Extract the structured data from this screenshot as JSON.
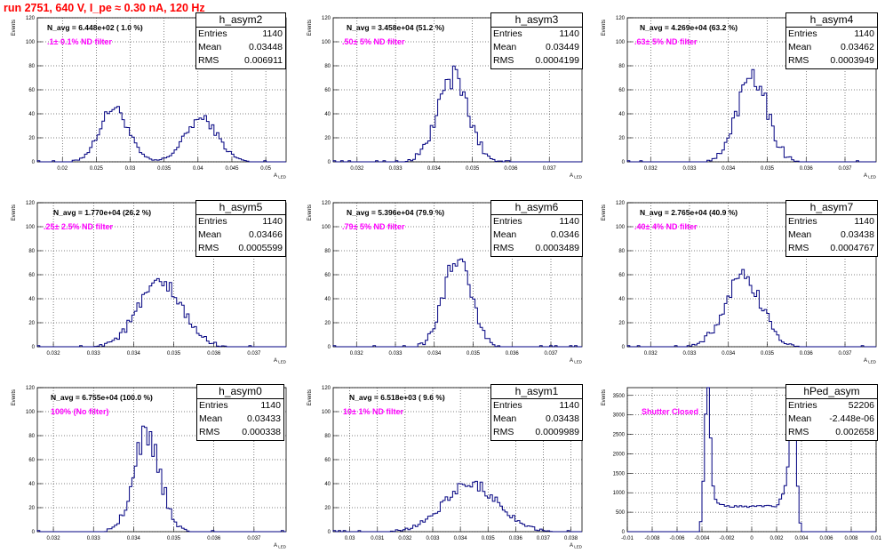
{
  "header": {
    "title": "run 2751,   640 V, I_pe ≈ 0.30 nA, 120 Hz",
    "color": "#ff0000"
  },
  "colors": {
    "hist": "#000080",
    "note": "#ff00ff",
    "axis": "#000000"
  },
  "stat_labels": {
    "entries": "Entries",
    "mean": "Mean",
    "rms": "RMS"
  },
  "chart_data": [
    {
      "type": "bar",
      "name": "h_asym2",
      "ylabel": "Events",
      "xlabel": "A_{LED}",
      "xlim": [
        0.0163,
        0.053
      ],
      "ylim": [
        0,
        120
      ],
      "grid": true,
      "xticks": [
        "0.02",
        "0.025",
        "0.03",
        "0.035",
        "0.04",
        "0.045",
        "0.05"
      ],
      "xtick_values": [
        0.02,
        0.025,
        0.03,
        0.035,
        0.04,
        0.045,
        0.05
      ],
      "yticks": [
        "0",
        "20",
        "40",
        "60",
        "80",
        "100",
        "120"
      ],
      "ytick_values": [
        0,
        20,
        40,
        60,
        80,
        100,
        120
      ],
      "n_avg": "N_avg = 6.448e+02 ( 1.0 %)",
      "note": ".1± 0.1% ND filter",
      "stats": {
        "entries": "1140",
        "mean": "0.03448",
        "rms": "0.006911"
      },
      "peaks": [
        {
          "x": 0.0276,
          "w": 0.0021,
          "h": 45
        },
        {
          "x": 0.0405,
          "w": 0.0024,
          "h": 36
        }
      ],
      "noise": 5
    },
    {
      "type": "bar",
      "name": "h_asym3",
      "ylabel": "Events",
      "xlabel": "A_{LED}",
      "xlim": [
        0.03138,
        0.03785
      ],
      "ylim": [
        0,
        120
      ],
      "grid": true,
      "xticks": [
        "0.032",
        "0.033",
        "0.034",
        "0.035",
        "0.036",
        "0.037"
      ],
      "xtick_values": [
        0.032,
        0.033,
        0.034,
        0.035,
        0.036,
        0.037
      ],
      "yticks": [
        "0",
        "20",
        "40",
        "60",
        "80",
        "100",
        "120"
      ],
      "ytick_values": [
        0,
        20,
        40,
        60,
        80,
        100,
        120
      ],
      "n_avg": "N_avg = 3.458e+04 (51.2 %)",
      "note": ".50± 5% ND filter",
      "stats": {
        "entries": "1140",
        "mean": "0.03449",
        "rms": "0.0004199"
      },
      "peaks": [
        {
          "x": 0.03449,
          "w": 0.0004,
          "h": 70
        }
      ],
      "noise": 10
    },
    {
      "type": "bar",
      "name": "h_asym4",
      "ylabel": "Events",
      "xlabel": "A_{LED}",
      "xlim": [
        0.0314,
        0.0378
      ],
      "ylim": [
        0,
        120
      ],
      "grid": true,
      "xticks": [
        "0.032",
        "0.033",
        "0.034",
        "0.035",
        "0.036",
        "0.037"
      ],
      "xtick_values": [
        0.032,
        0.033,
        0.034,
        0.035,
        0.036,
        0.037
      ],
      "yticks": [
        "0",
        "20",
        "40",
        "60",
        "80",
        "100",
        "120"
      ],
      "ytick_values": [
        0,
        20,
        40,
        60,
        80,
        100,
        120
      ],
      "n_avg": "N_avg = 4.269e+04 (63.2 %)",
      "note": ".63± 5% ND filter",
      "stats": {
        "entries": "1140",
        "mean": "0.03462",
        "rms": "0.0003949"
      },
      "peaks": [
        {
          "x": 0.03462,
          "w": 0.00038,
          "h": 75
        }
      ],
      "noise": 10
    },
    {
      "type": "bar",
      "name": "h_asym5",
      "ylabel": "Events",
      "xlabel": "A_{LED}",
      "xlim": [
        0.0316,
        0.0378
      ],
      "ylim": [
        0,
        120
      ],
      "grid": true,
      "xticks": [
        "0.032",
        "0.033",
        "0.034",
        "0.035",
        "0.036",
        "0.037"
      ],
      "xtick_values": [
        0.032,
        0.033,
        0.034,
        0.035,
        0.036,
        0.037
      ],
      "yticks": [
        "0",
        "20",
        "40",
        "60",
        "80",
        "100",
        "120"
      ],
      "ytick_values": [
        0,
        20,
        40,
        60,
        80,
        100,
        120
      ],
      "n_avg": "N_avg = 1.770e+04 (26.2 %)",
      "note": ".25± 2.5% ND filter",
      "stats": {
        "entries": "1140",
        "mean": "0.03466",
        "rms": "0.0005599"
      },
      "peaks": [
        {
          "x": 0.03466,
          "w": 0.00055,
          "h": 52
        }
      ],
      "noise": 8
    },
    {
      "type": "bar",
      "name": "h_asym6",
      "ylabel": "Events",
      "xlabel": "A_{LED}",
      "xlim": [
        0.0314,
        0.0378
      ],
      "ylim": [
        0,
        120
      ],
      "grid": true,
      "xticks": [
        "0.032",
        "0.033",
        "0.034",
        "0.035",
        "0.036",
        "0.037"
      ],
      "xtick_values": [
        0.032,
        0.033,
        0.034,
        0.035,
        0.036,
        0.037
      ],
      "yticks": [
        "0",
        "20",
        "40",
        "60",
        "80",
        "100",
        "120"
      ],
      "ytick_values": [
        0,
        20,
        40,
        60,
        80,
        100,
        120
      ],
      "n_avg": "N_avg = 5.396e+04 (79.9 %)",
      "note": ".79± 5% ND filter",
      "stats": {
        "entries": "1140",
        "mean": "0.0346",
        "rms": "0.0003489"
      },
      "peaks": [
        {
          "x": 0.0346,
          "w": 0.00035,
          "h": 76
        }
      ],
      "noise": 8
    },
    {
      "type": "bar",
      "name": "h_asym7",
      "ylabel": "Events",
      "xlabel": "A_{LED}",
      "xlim": [
        0.0314,
        0.0378
      ],
      "ylim": [
        0,
        120
      ],
      "grid": true,
      "xticks": [
        "0.032",
        "0.033",
        "0.034",
        "0.035",
        "0.036",
        "0.037"
      ],
      "xtick_values": [
        0.032,
        0.033,
        0.034,
        0.035,
        0.036,
        0.037
      ],
      "yticks": [
        "0",
        "20",
        "40",
        "60",
        "80",
        "100",
        "120"
      ],
      "ytick_values": [
        0,
        20,
        40,
        60,
        80,
        100,
        120
      ],
      "n_avg": "N_avg = 2.765e+04 (40.9 %)",
      "note": ".40± 4% ND filter",
      "stats": {
        "entries": "1140",
        "mean": "0.03438",
        "rms": "0.0004767"
      },
      "peaks": [
        {
          "x": 0.03438,
          "w": 0.00047,
          "h": 57
        }
      ],
      "noise": 8
    },
    {
      "type": "bar",
      "name": "h_asym0",
      "ylabel": "Events",
      "xlabel": "A_{LED}",
      "xlim": [
        0.0316,
        0.0378
      ],
      "ylim": [
        0,
        120
      ],
      "grid": true,
      "xticks": [
        "0.032",
        "0.033",
        "0.034",
        "0.035",
        "0.036",
        "0.037"
      ],
      "xtick_values": [
        0.032,
        0.033,
        0.034,
        0.035,
        0.036,
        0.037
      ],
      "yticks": [
        "0",
        "20",
        "40",
        "60",
        "80",
        "100",
        "120"
      ],
      "ytick_values": [
        0,
        20,
        40,
        60,
        80,
        100,
        120
      ],
      "n_avg": "N_avg = 6.755e+04 (100.0 %)",
      "note": "100% (No filter)",
      "stats": {
        "entries": "1140",
        "mean": "0.03433",
        "rms": "0.000338"
      },
      "peaks": [
        {
          "x": 0.03433,
          "w": 0.00033,
          "h": 80
        }
      ],
      "noise": 10
    },
    {
      "type": "bar",
      "name": "h_asym1",
      "ylabel": "Events",
      "xlabel": "A_{LED}",
      "xlim": [
        0.0294,
        0.0384
      ],
      "ylim": [
        0,
        120
      ],
      "grid": true,
      "xticks": [
        "0.03",
        "0.031",
        "0.032",
        "0.033",
        "0.034",
        "0.035",
        "0.036",
        "0.037",
        "0.038"
      ],
      "xtick_values": [
        0.03,
        0.031,
        0.032,
        0.033,
        0.034,
        0.035,
        0.036,
        0.037,
        0.038
      ],
      "yticks": [
        "0",
        "20",
        "40",
        "60",
        "80",
        "100",
        "120"
      ],
      "ytick_values": [
        0,
        20,
        40,
        60,
        80,
        100,
        120
      ],
      "n_avg": "N_avg = 6.518e+03 ( 9.6 %)",
      "note": "10± 1% ND filter",
      "stats": {
        "entries": "1140",
        "mean": "0.03438",
        "rms": "0.0009989"
      },
      "peaks": [
        {
          "x": 0.03438,
          "w": 0.00098,
          "h": 40
        }
      ],
      "noise": 6
    },
    {
      "type": "bar",
      "name": "hPed_asym",
      "ylabel": "Events",
      "xlabel": "",
      "xlim": [
        -0.01,
        0.01
      ],
      "ylim": [
        0,
        3700
      ],
      "grid": true,
      "xticks": [
        "-0.01",
        "-0.008",
        "-0.006",
        "-0.004",
        "-0.002",
        "0",
        "0.002",
        "0.004",
        "0.006",
        "0.008",
        "0.01"
      ],
      "xtick_values": [
        -0.01,
        -0.008,
        -0.006,
        -0.004,
        -0.002,
        0,
        0.002,
        0.004,
        0.006,
        0.008,
        0.01
      ],
      "yticks": [
        "0",
        "500",
        "1000",
        "1500",
        "2000",
        "2500",
        "3000",
        "3500"
      ],
      "ytick_values": [
        0,
        500,
        1000,
        1500,
        2000,
        2500,
        3000,
        3500
      ],
      "n_avg": "",
      "note": "Shutter Closed",
      "stats": {
        "entries": "52206",
        "mean": "-2.448e-06",
        "rms": "0.002658"
      },
      "shape": "pedestal",
      "noise": 60
    }
  ]
}
